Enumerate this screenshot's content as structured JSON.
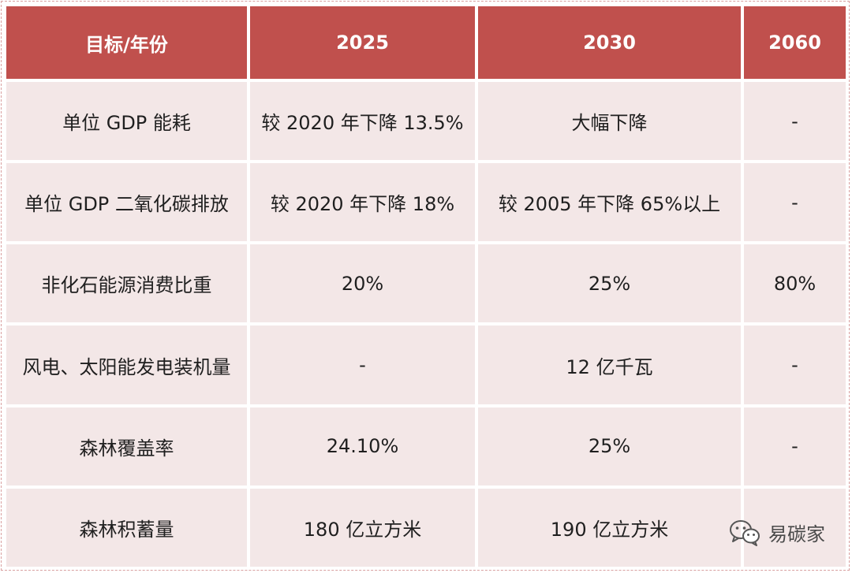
{
  "headers": [
    "目标/年份",
    "2025",
    "2030",
    "2060"
  ],
  "rows": [
    [
      "单位 GDP 能耗",
      "较 2020 年下降 13.5%",
      "大幅下降",
      "-"
    ],
    [
      "单位 GDP 二氧化碳排放",
      "较 2020 年下降 18%",
      "较 2005 年下降 65%以上",
      "-"
    ],
    [
      "非化石能源消费比重",
      "20%",
      "25%",
      "80%"
    ],
    [
      "风电、太阳能发电装机量",
      "-",
      "12 亿千瓦",
      "-"
    ],
    [
      "森林覆盖率",
      "24.10%",
      "25%",
      "-"
    ],
    [
      "森林积蓄量",
      "180 亿立方米",
      "190 亿立方米",
      ""
    ]
  ],
  "watermark": {
    "text": "易碳家",
    "icon": "wechat-icon"
  },
  "colors": {
    "header_bg": "#c0504d",
    "cell_bg": "#f3e7e7"
  }
}
